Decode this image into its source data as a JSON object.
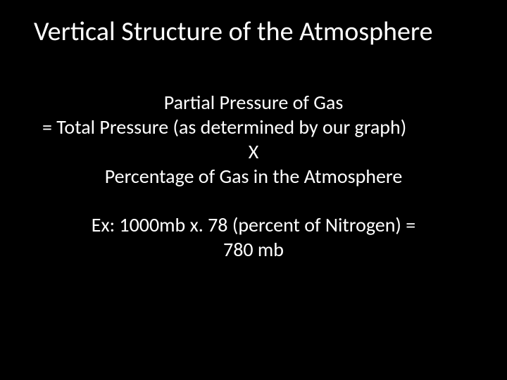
{
  "slide": {
    "background_color": "#000000",
    "text_color": "#ffffff",
    "title": {
      "text": "Vertical Structure of the Atmosphere",
      "font_size_pt": 38,
      "font_weight": 400,
      "align": "left"
    },
    "body": {
      "font_size_pt": 28,
      "font_weight": 400,
      "align": "center",
      "lines": {
        "l1": "Partial Pressure of Gas",
        "l2": "= Total Pressure (as determined by our graph)",
        "l3": "X",
        "l4": "Percentage of Gas in the Atmosphere",
        "l5": "Ex: 1000mb x. 78 (percent of Nitrogen) =",
        "l6": "780 mb"
      }
    }
  }
}
